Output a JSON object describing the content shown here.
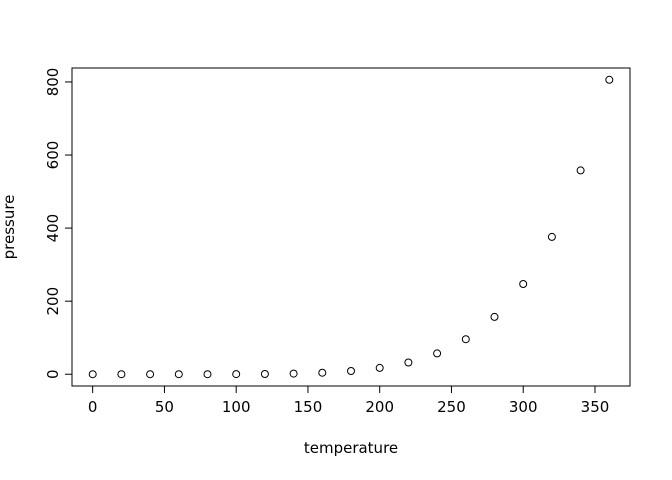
{
  "chart_data": {
    "type": "scatter",
    "title": "",
    "xlabel": "temperature",
    "ylabel": "pressure",
    "x": [
      0,
      20,
      40,
      60,
      80,
      100,
      120,
      140,
      160,
      180,
      200,
      220,
      240,
      260,
      280,
      300,
      320,
      340,
      360
    ],
    "y": [
      0.0002,
      0.0012,
      0.006,
      0.03,
      0.09,
      0.27,
      0.75,
      1.85,
      4.2,
      8.8,
      17.3,
      32.1,
      57.0,
      96.0,
      157.0,
      247.0,
      376.0,
      558.0,
      806.0
    ],
    "xlim": [
      -14.4,
      374.4
    ],
    "ylim": [
      -32.2,
      838.2
    ],
    "xticks": [
      0,
      50,
      100,
      150,
      200,
      250,
      300,
      350
    ],
    "yticks": [
      0,
      200,
      400,
      600,
      800
    ],
    "grid": false,
    "legend": false,
    "marker": "open-circle",
    "marker_color": "#000000",
    "background": "#ffffff"
  }
}
